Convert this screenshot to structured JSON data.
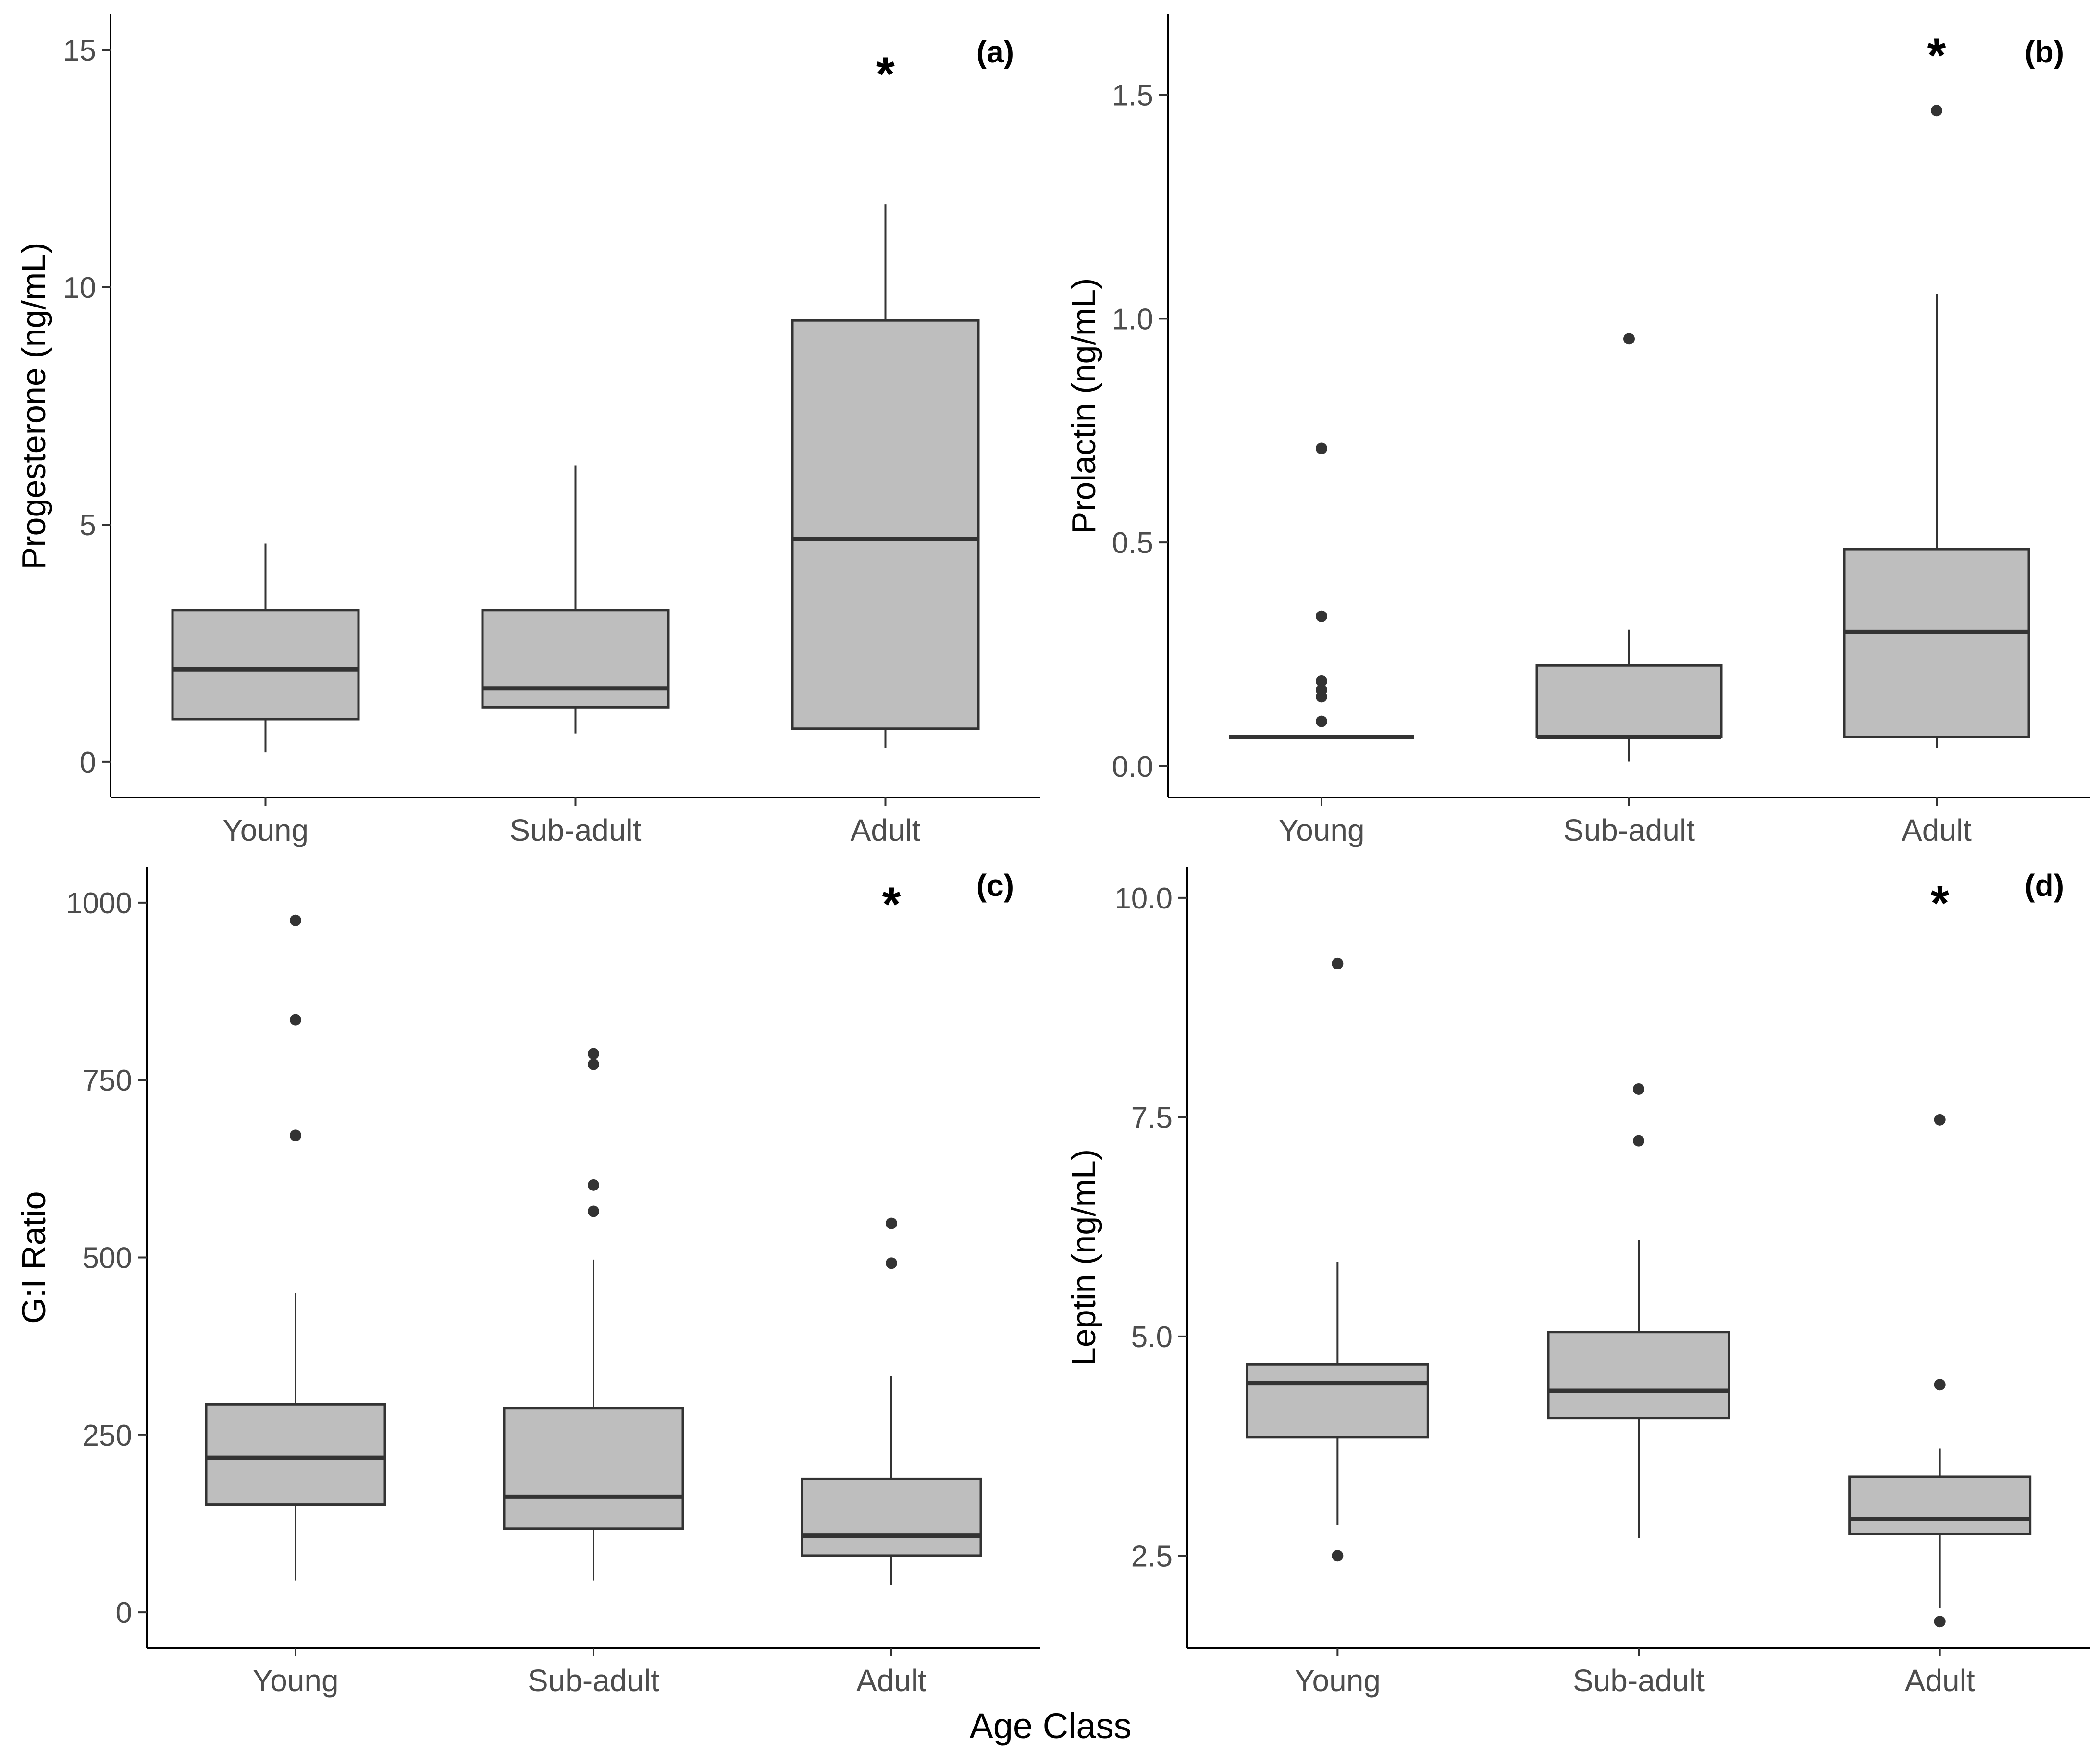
{
  "figure": {
    "shared_xlabel": "Age Class"
  },
  "chart_data": [
    {
      "type": "boxplot",
      "panel_label": "(a)",
      "ylabel": "Progesterone (ng/mL)",
      "xlabel": "",
      "categories": [
        "Young",
        "Sub-adult",
        "Adult"
      ],
      "ylim": [
        -0.75,
        15.75
      ],
      "yticks": [
        0,
        5,
        10,
        15
      ],
      "ytick_labels": [
        "0",
        "5",
        "10",
        "15"
      ],
      "boxes": [
        {
          "category": "Young",
          "whisker_low": 0.2,
          "q1": 0.9,
          "median": 1.95,
          "q3": 3.2,
          "whisker_high": 4.6,
          "outliers": []
        },
        {
          "category": "Sub-adult",
          "whisker_low": 0.6,
          "q1": 1.15,
          "median": 1.55,
          "q3": 3.2,
          "whisker_high": 6.25,
          "outliers": []
        },
        {
          "category": "Adult",
          "whisker_low": 0.3,
          "q1": 0.7,
          "median": 4.7,
          "q3": 9.3,
          "whisker_high": 11.75,
          "outliers": []
        }
      ],
      "annotation": {
        "text": "*",
        "category": "Adult",
        "y": 14.6
      }
    },
    {
      "type": "boxplot",
      "panel_label": "(b)",
      "ylabel": "Prolactin (ng/mL)",
      "xlabel": "",
      "categories": [
        "Young",
        "Sub-adult",
        "Adult"
      ],
      "ylim": [
        -0.07,
        1.68
      ],
      "yticks": [
        0,
        0.5,
        1.0,
        1.5
      ],
      "ytick_labels": [
        "0.0",
        "0.5",
        "1.0",
        "1.5"
      ],
      "boxes": [
        {
          "category": "Young",
          "whisker_low": 0.065,
          "q1": 0.065,
          "median": 0.065,
          "q3": 0.065,
          "whisker_high": 0.065,
          "outliers": [
            0.1,
            0.155,
            0.17,
            0.19,
            0.335,
            0.71
          ]
        },
        {
          "category": "Sub-adult",
          "whisker_low": 0.01,
          "q1": 0.065,
          "median": 0.065,
          "q3": 0.225,
          "whisker_high": 0.305,
          "outliers": [
            0.955
          ]
        },
        {
          "category": "Adult",
          "whisker_low": 0.04,
          "q1": 0.065,
          "median": 0.3,
          "q3": 0.485,
          "whisker_high": 1.055,
          "outliers": [
            1.465
          ]
        }
      ],
      "annotation": {
        "text": "*",
        "category": "Adult",
        "y": 1.6
      }
    },
    {
      "type": "boxplot",
      "panel_label": "(c)",
      "ylabel": "G:I Ratio",
      "xlabel": "",
      "categories": [
        "Young",
        "Sub-adult",
        "Adult"
      ],
      "ylim": [
        -50,
        1050
      ],
      "yticks": [
        0,
        250,
        500,
        750,
        1000
      ],
      "ytick_labels": [
        "0",
        "250",
        "500",
        "750",
        "1000"
      ],
      "boxes": [
        {
          "category": "Young",
          "whisker_low": 45,
          "q1": 152,
          "median": 218,
          "q3": 293,
          "whisker_high": 450,
          "outliers": [
            672,
            835,
            975
          ]
        },
        {
          "category": "Sub-adult",
          "whisker_low": 45,
          "q1": 118,
          "median": 163,
          "q3": 288,
          "whisker_high": 497,
          "outliers": [
            565,
            602,
            772,
            787
          ]
        },
        {
          "category": "Adult",
          "whisker_low": 38,
          "q1": 80,
          "median": 108,
          "q3": 188,
          "whisker_high": 333,
          "outliers": [
            492,
            548
          ]
        }
      ],
      "annotation": {
        "text": "*",
        "category": "Adult",
        "y": 1005
      }
    },
    {
      "type": "boxplot",
      "panel_label": "(d)",
      "ylabel": "Leptin (ng/mL)",
      "xlabel": "",
      "categories": [
        "Young",
        "Sub-adult",
        "Adult"
      ],
      "ylim": [
        1.45,
        10.35
      ],
      "yticks": [
        2.5,
        5.0,
        7.5,
        10.0
      ],
      "ytick_labels": [
        "2.5",
        "5.0",
        "7.5",
        "10.0"
      ],
      "boxes": [
        {
          "category": "Young",
          "whisker_low": 2.85,
          "q1": 3.85,
          "median": 4.47,
          "q3": 4.68,
          "whisker_high": 5.85,
          "outliers": [
            2.5,
            9.25
          ]
        },
        {
          "category": "Sub-adult",
          "whisker_low": 2.7,
          "q1": 4.07,
          "median": 4.38,
          "q3": 5.05,
          "whisker_high": 6.1,
          "outliers": [
            7.23,
            7.82
          ]
        },
        {
          "category": "Adult",
          "whisker_low": 1.9,
          "q1": 2.75,
          "median": 2.92,
          "q3": 3.4,
          "whisker_high": 3.72,
          "outliers": [
            1.75,
            4.45,
            7.47
          ]
        }
      ],
      "annotation": {
        "text": "*",
        "category": "Adult",
        "y": 10.0
      }
    }
  ]
}
